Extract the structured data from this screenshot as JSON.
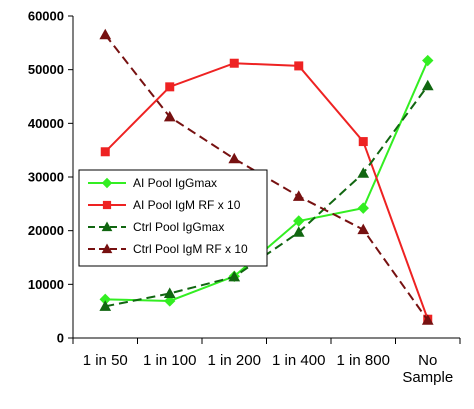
{
  "chart_data": {
    "type": "line",
    "title": "",
    "xlabel": "",
    "ylabel": "",
    "categories": [
      "1 in 50",
      "1 in 100",
      "1 in 200",
      "1 in 400",
      "1 in 800",
      "No Sample"
    ],
    "ylim": [
      0,
      60000
    ],
    "yticks": [
      0,
      10000,
      20000,
      30000,
      40000,
      50000,
      60000
    ],
    "grid": false,
    "legend_position": "center-left",
    "series": [
      {
        "name": "AI Pool IgGmax",
        "color": "#33ee22",
        "marker": "diamond",
        "dash": "solid",
        "values": [
          7200,
          6900,
          11500,
          21800,
          24200,
          51700
        ]
      },
      {
        "name": "AI Pool IgM RF x 10",
        "color": "#ee2222",
        "marker": "square",
        "dash": "solid",
        "values": [
          34700,
          46800,
          51200,
          50700,
          36600,
          3500
        ]
      },
      {
        "name": "Ctrl Pool IgGmax",
        "color": "#116611",
        "marker": "triangle",
        "dash": "dashed",
        "values": [
          5900,
          8300,
          11400,
          19700,
          30700,
          47000
        ]
      },
      {
        "name": "Ctrl Pool IgM RF x 10",
        "color": "#771111",
        "marker": "triangle",
        "dash": "dashed",
        "values": [
          56500,
          41200,
          33400,
          26400,
          20200,
          3300
        ]
      }
    ]
  }
}
